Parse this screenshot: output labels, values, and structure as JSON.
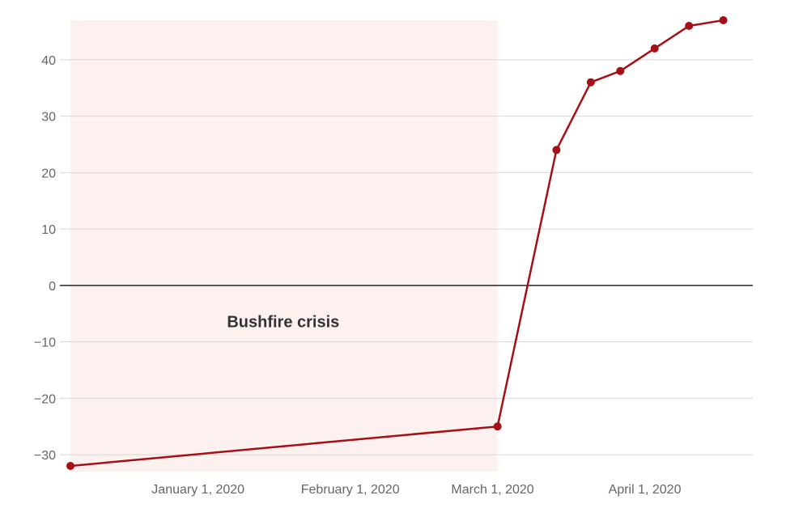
{
  "chart_data": {
    "type": "line",
    "title": "",
    "xlabel": "",
    "ylabel": "",
    "x_ticks": [
      "January 1, 2020",
      "February 1, 2020",
      "March 1, 2020",
      "April 1, 2020"
    ],
    "y_ticks": [
      40,
      30,
      20,
      10,
      0,
      -10,
      -20,
      -30
    ],
    "ylim": [
      -33,
      47
    ],
    "xlim": [
      "2019-12-06",
      "2020-04-23"
    ],
    "grid": true,
    "colors": {
      "line": "#a50f15",
      "shade": "#fdf1ef",
      "zero_line": "#222222",
      "grid": "#d6d6d6"
    },
    "shaded_region": {
      "label": "Bushfire crisis",
      "x_start": "2019-12-06",
      "x_end": "2020-03-02"
    },
    "series": [
      {
        "points": [
          {
            "x": "2019-12-06",
            "y": -32
          },
          {
            "x": "2020-03-02",
            "y": -25
          },
          {
            "x": "2020-03-14",
            "y": 24
          },
          {
            "x": "2020-03-21",
            "y": 36
          },
          {
            "x": "2020-03-27",
            "y": 38
          },
          {
            "x": "2020-04-03",
            "y": 42
          },
          {
            "x": "2020-04-10",
            "y": 46
          },
          {
            "x": "2020-04-17",
            "y": 47
          }
        ]
      }
    ]
  }
}
